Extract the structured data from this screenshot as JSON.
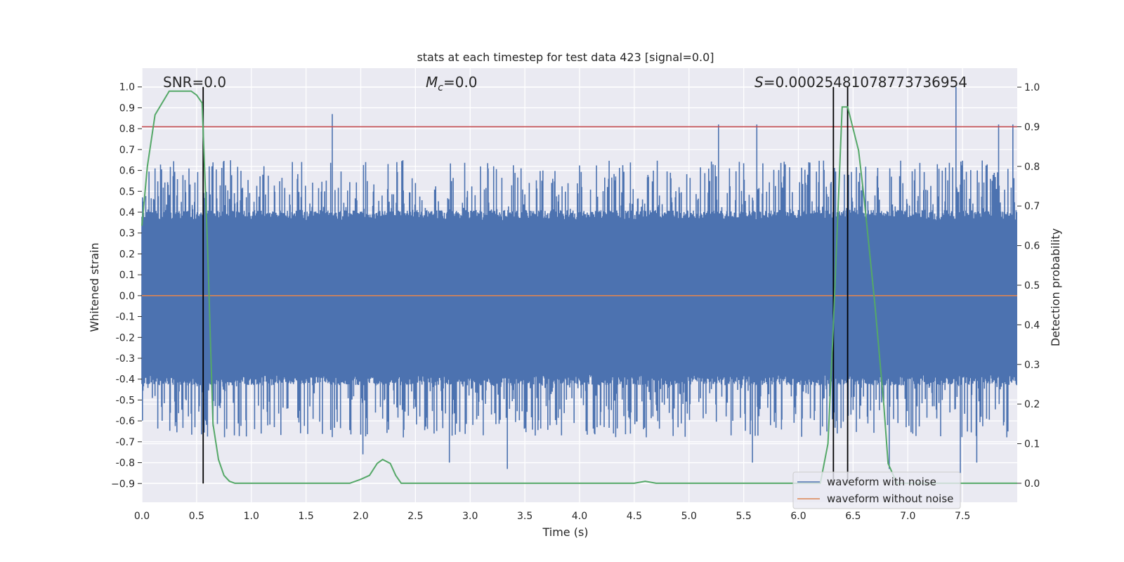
{
  "chart_data": {
    "type": "line",
    "title": "stats at each timestep for test data 423 [signal=0.0]",
    "xlabel": "Time (s)",
    "ylabel": "Whitened strain",
    "y2label": "Detection probability",
    "xlim": [
      0.0,
      8.0
    ],
    "ylim": [
      -0.99,
      1.09
    ],
    "y2lim": [
      -0.048,
      1.048
    ],
    "x_ticks": [
      0.0,
      0.5,
      1.0,
      1.5,
      2.0,
      2.5,
      3.0,
      3.5,
      4.0,
      4.5,
      5.0,
      5.5,
      6.0,
      6.5,
      7.0,
      7.5
    ],
    "x_tick_labels": [
      "0.0",
      "0.5",
      "1.0",
      "1.5",
      "2.0",
      "2.5",
      "3.0",
      "3.5",
      "4.0",
      "4.5",
      "5.0",
      "5.5",
      "6.0",
      "6.5",
      "7.0",
      "7.5"
    ],
    "y_ticks": [
      1.0,
      0.9,
      0.8,
      0.7,
      0.6,
      0.5,
      0.4,
      0.3,
      0.2,
      0.1,
      0.0,
      -0.1,
      -0.2,
      -0.3,
      -0.4,
      -0.5,
      -0.6,
      -0.7,
      -0.8,
      -0.9
    ],
    "y_tick_labels": [
      "1.0",
      "0.9",
      "0.8",
      "0.7",
      "0.6",
      "0.5",
      "0.4",
      "0.3",
      "0.2",
      "0.1",
      "0.0",
      "-0.1",
      "-0.2",
      "-0.3",
      "-0.4",
      "-0.5",
      "-0.6",
      "-0.7",
      "-0.8",
      "−0.9"
    ],
    "y2_ticks": [
      1.0,
      0.9,
      0.8,
      0.7,
      0.6,
      0.5,
      0.4,
      0.3,
      0.2,
      0.1,
      0.0
    ],
    "y2_tick_labels": [
      "1.0",
      "0.9",
      "0.8",
      "0.7",
      "0.6",
      "0.5",
      "0.4",
      "0.3",
      "0.2",
      "0.1",
      "0.0"
    ],
    "annotations": {
      "snr": "SNR=0.0",
      "mc_symbol": "M",
      "mc_sub": "c",
      "mc_value": "=0.0",
      "s_symbol": "S",
      "s_value": "=0.00025481078773736954"
    },
    "threshold": {
      "axis": "right",
      "value": 0.9,
      "color": "#c44e52"
    },
    "noise_envelope": {
      "color": "#4c72b0",
      "dense_band": [
        -0.38,
        0.36
      ],
      "typical_peak_range": [
        0.4,
        0.65
      ],
      "spikes": [
        {
          "x": 1.74,
          "y": 0.87
        },
        {
          "x": 5.27,
          "y": 0.82
        },
        {
          "x": 5.62,
          "y": 0.82
        },
        {
          "x": 7.44,
          "y": 1.0
        },
        {
          "x": 7.83,
          "y": 0.82
        },
        {
          "x": 7.96,
          "y": 0.82
        },
        {
          "x": 2.02,
          "y": -0.76
        },
        {
          "x": 3.34,
          "y": -0.83
        },
        {
          "x": 2.81,
          "y": -0.8
        },
        {
          "x": 5.58,
          "y": -0.8
        },
        {
          "x": 6.83,
          "y": -0.83
        },
        {
          "x": 7.48,
          "y": -0.85
        },
        {
          "x": 7.63,
          "y": -0.8
        }
      ]
    },
    "series": [
      {
        "name": "waveform with noise",
        "axis": "left",
        "color": "#4c72b0",
        "style": "dense noise"
      },
      {
        "name": "waveform without noise",
        "axis": "left",
        "color": "#dd8452",
        "x": [
          0.0,
          8.0
        ],
        "y": [
          0.0,
          0.0
        ]
      },
      {
        "name": "detection probability",
        "axis": "right",
        "color": "#55a868",
        "x": [
          0.0,
          0.05,
          0.12,
          0.25,
          0.35,
          0.45,
          0.5,
          0.55,
          0.6,
          0.65,
          0.7,
          0.75,
          0.8,
          0.85,
          1.0,
          1.5,
          1.9,
          2.0,
          2.08,
          2.15,
          2.2,
          2.27,
          2.32,
          2.37,
          2.5,
          4.5,
          4.6,
          4.7,
          5.5,
          6.2,
          6.27,
          6.32,
          6.4,
          6.45,
          6.55,
          6.6,
          6.7,
          6.78,
          6.82,
          6.9,
          7.0,
          8.0
        ],
        "y": [
          0.65,
          0.8,
          0.93,
          0.99,
          0.99,
          0.99,
          0.98,
          0.96,
          0.6,
          0.15,
          0.06,
          0.02,
          0.005,
          0.0,
          0.0,
          0.0,
          0.0,
          0.01,
          0.02,
          0.05,
          0.06,
          0.05,
          0.02,
          0.0,
          0.0,
          0.0,
          0.005,
          0.0,
          0.0,
          0.0,
          0.1,
          0.4,
          0.95,
          0.95,
          0.84,
          0.72,
          0.45,
          0.2,
          0.05,
          0.0,
          0.0,
          0.0
        ]
      }
    ],
    "event_markers": {
      "color": "#000000",
      "x": [
        0.56,
        6.32,
        6.45
      ],
      "y_top": 1.0,
      "y_bottom": -0.9
    },
    "legend": {
      "location": "lower-right",
      "entries": [
        {
          "label": "waveform with noise",
          "color": "#4c72b0"
        },
        {
          "label": "waveform without noise",
          "color": "#dd8452"
        }
      ]
    }
  }
}
